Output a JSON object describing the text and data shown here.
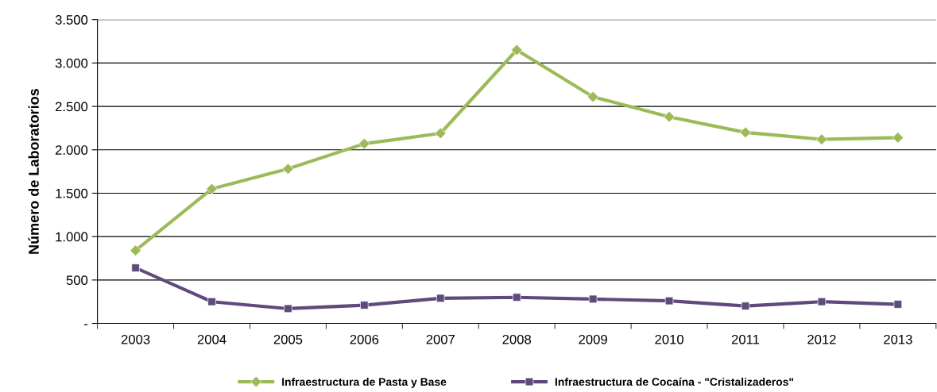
{
  "chart_data": {
    "type": "line",
    "ylabel": "Número de Laboratorios",
    "categories": [
      "2003",
      "2004",
      "2005",
      "2006",
      "2007",
      "2008",
      "2009",
      "2010",
      "2011",
      "2012",
      "2013"
    ],
    "series": [
      {
        "name": "Infraestructura de Pasta y Base",
        "color": "#9bbb59",
        "marker": "diamond",
        "values": [
          840,
          1550,
          1780,
          2070,
          2190,
          3150,
          2610,
          2380,
          2200,
          2120,
          2140
        ]
      },
      {
        "name": "Infraestructura de Cocaína - \"Cristalizaderos\"",
        "color": "#604a7b",
        "marker": "square",
        "values": [
          640,
          250,
          170,
          210,
          290,
          300,
          280,
          260,
          200,
          250,
          220
        ]
      }
    ],
    "ylim": [
      0,
      3500
    ],
    "yticks": [
      {
        "value": 0,
        "label": "-"
      },
      {
        "value": 500,
        "label": "500"
      },
      {
        "value": 1000,
        "label": "1.000"
      },
      {
        "value": 1500,
        "label": "1.500"
      },
      {
        "value": 2000,
        "label": "2.000"
      },
      {
        "value": 2500,
        "label": "2.500"
      },
      {
        "value": 3000,
        "label": "3.000"
      },
      {
        "value": 3500,
        "label": "3.500"
      }
    ],
    "grid": "y",
    "legend": "bottom",
    "line_style": "solid"
  }
}
